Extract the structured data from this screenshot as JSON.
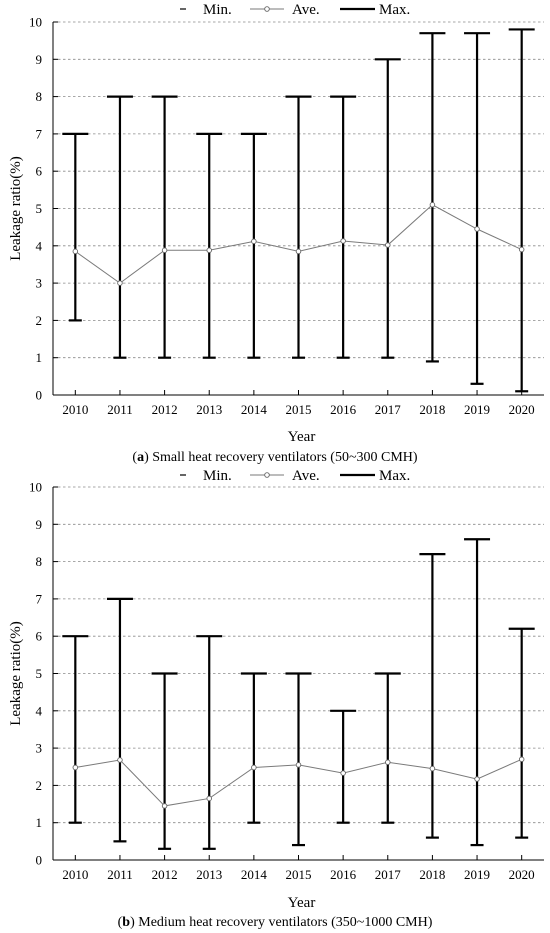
{
  "chart_data": [
    {
      "type": "line",
      "caption": {
        "prefix": "(",
        "letter": "a",
        "text": ") Small heat recovery ventilators (50~300 CMH)"
      },
      "xlabel": "Year",
      "ylabel": "Leakage ratio(%)",
      "ylim": [
        0,
        10
      ],
      "yticks": [
        0,
        1,
        2,
        3,
        4,
        5,
        6,
        7,
        8,
        9,
        10
      ],
      "categories": [
        "2010",
        "2011",
        "2012",
        "2013",
        "2014",
        "2015",
        "2016",
        "2017",
        "2018",
        "2019",
        "2020"
      ],
      "legend": [
        "Min.",
        "Ave.",
        "Max."
      ],
      "legend_position": "top",
      "grid": "horizontal dashed",
      "series": [
        {
          "name": "Min.",
          "values": [
            2.0,
            1.0,
            1.0,
            1.0,
            1.0,
            1.0,
            1.0,
            1.0,
            0.9,
            0.3,
            0.1
          ]
        },
        {
          "name": "Ave.",
          "values": [
            3.85,
            3.0,
            3.88,
            3.88,
            4.12,
            3.85,
            4.13,
            4.02,
            5.1,
            4.45,
            3.9
          ]
        },
        {
          "name": "Max.",
          "values": [
            7.0,
            8.0,
            8.0,
            7.0,
            7.0,
            8.0,
            8.0,
            9.0,
            9.7,
            9.7,
            9.8
          ]
        }
      ]
    },
    {
      "type": "line",
      "caption": {
        "prefix": "(",
        "letter": "b",
        "text": ") Medium heat recovery ventilators (350~1000 CMH)"
      },
      "xlabel": "Year",
      "ylabel": "Leakage ratio(%)",
      "ylim": [
        0,
        10
      ],
      "yticks": [
        0,
        1,
        2,
        3,
        4,
        5,
        6,
        7,
        8,
        9,
        10
      ],
      "categories": [
        "2010",
        "2011",
        "2012",
        "2013",
        "2014",
        "2015",
        "2016",
        "2017",
        "2018",
        "2019",
        "2020"
      ],
      "legend": [
        "Min.",
        "Ave.",
        "Max."
      ],
      "legend_position": "top",
      "grid": "horizontal dashed",
      "series": [
        {
          "name": "Min.",
          "values": [
            1.0,
            0.5,
            0.3,
            0.3,
            1.0,
            0.4,
            1.0,
            1.0,
            0.6,
            0.4,
            0.6
          ]
        },
        {
          "name": "Ave.",
          "values": [
            2.48,
            2.68,
            1.45,
            1.65,
            2.48,
            2.55,
            2.33,
            2.62,
            2.45,
            2.17,
            2.7
          ]
        },
        {
          "name": "Max.",
          "values": [
            6.0,
            7.0,
            5.0,
            6.0,
            5.0,
            5.0,
            4.0,
            5.0,
            8.2,
            8.6,
            6.2
          ]
        }
      ]
    }
  ]
}
